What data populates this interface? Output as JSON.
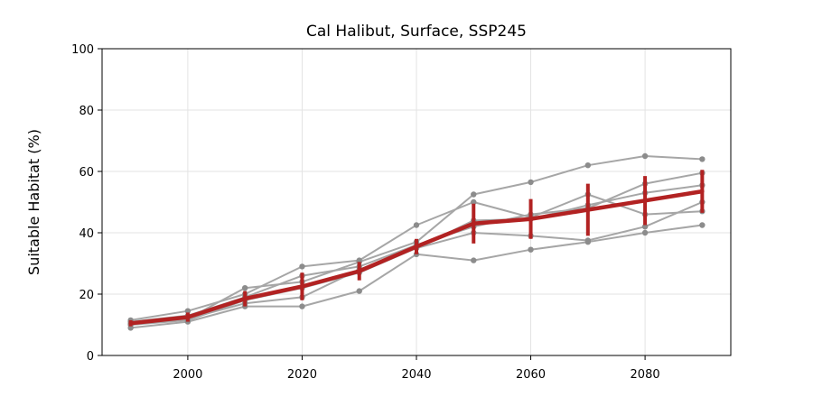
{
  "chart_data": {
    "type": "line",
    "title": "Cal Halibut, Surface, SSP245",
    "xlabel": "",
    "ylabel": "Suitable Habitat (%)",
    "x": [
      1990,
      2000,
      2010,
      2020,
      2030,
      2040,
      2050,
      2060,
      2070,
      2080,
      2090
    ],
    "xticks": [
      2000,
      2020,
      2040,
      2060,
      2080
    ],
    "yticks": [
      0,
      20,
      40,
      60,
      80,
      100
    ],
    "xlim": [
      1985,
      2095
    ],
    "ylim": [
      0,
      100
    ],
    "grid": true,
    "legend": "none",
    "member_color": "#a6a6a6",
    "mean_color": "#b22222",
    "members": [
      {
        "values": [
          9,
          11,
          16,
          16,
          21,
          33,
          31,
          34.5,
          37,
          40,
          42.5
        ]
      },
      {
        "values": [
          10,
          12,
          17,
          19,
          28,
          35,
          40,
          39,
          37.5,
          42,
          50
        ]
      },
      {
        "values": [
          11,
          13,
          19,
          26,
          29,
          36,
          42,
          46,
          48,
          56,
          59.5
        ]
      },
      {
        "values": [
          11.5,
          14.5,
          20,
          29,
          31,
          42.5,
          50,
          45,
          52.5,
          46,
          47
        ]
      },
      {
        "values": [
          10.5,
          12,
          22,
          24,
          30.5,
          37,
          52.5,
          56.5,
          62,
          65,
          64
        ]
      },
      {
        "values": [
          10,
          11.5,
          18,
          22,
          27,
          35,
          44,
          44.5,
          49,
          53,
          55.5
        ]
      }
    ],
    "mean": {
      "values": [
        10.5,
        12.5,
        18.5,
        22.5,
        27.5,
        35.5,
        43,
        44.5,
        47.5,
        50.5,
        53.5
      ],
      "error": [
        1,
        1.5,
        2.5,
        4.5,
        3,
        2.5,
        6.5,
        6.5,
        8.5,
        8,
        7
      ]
    }
  }
}
